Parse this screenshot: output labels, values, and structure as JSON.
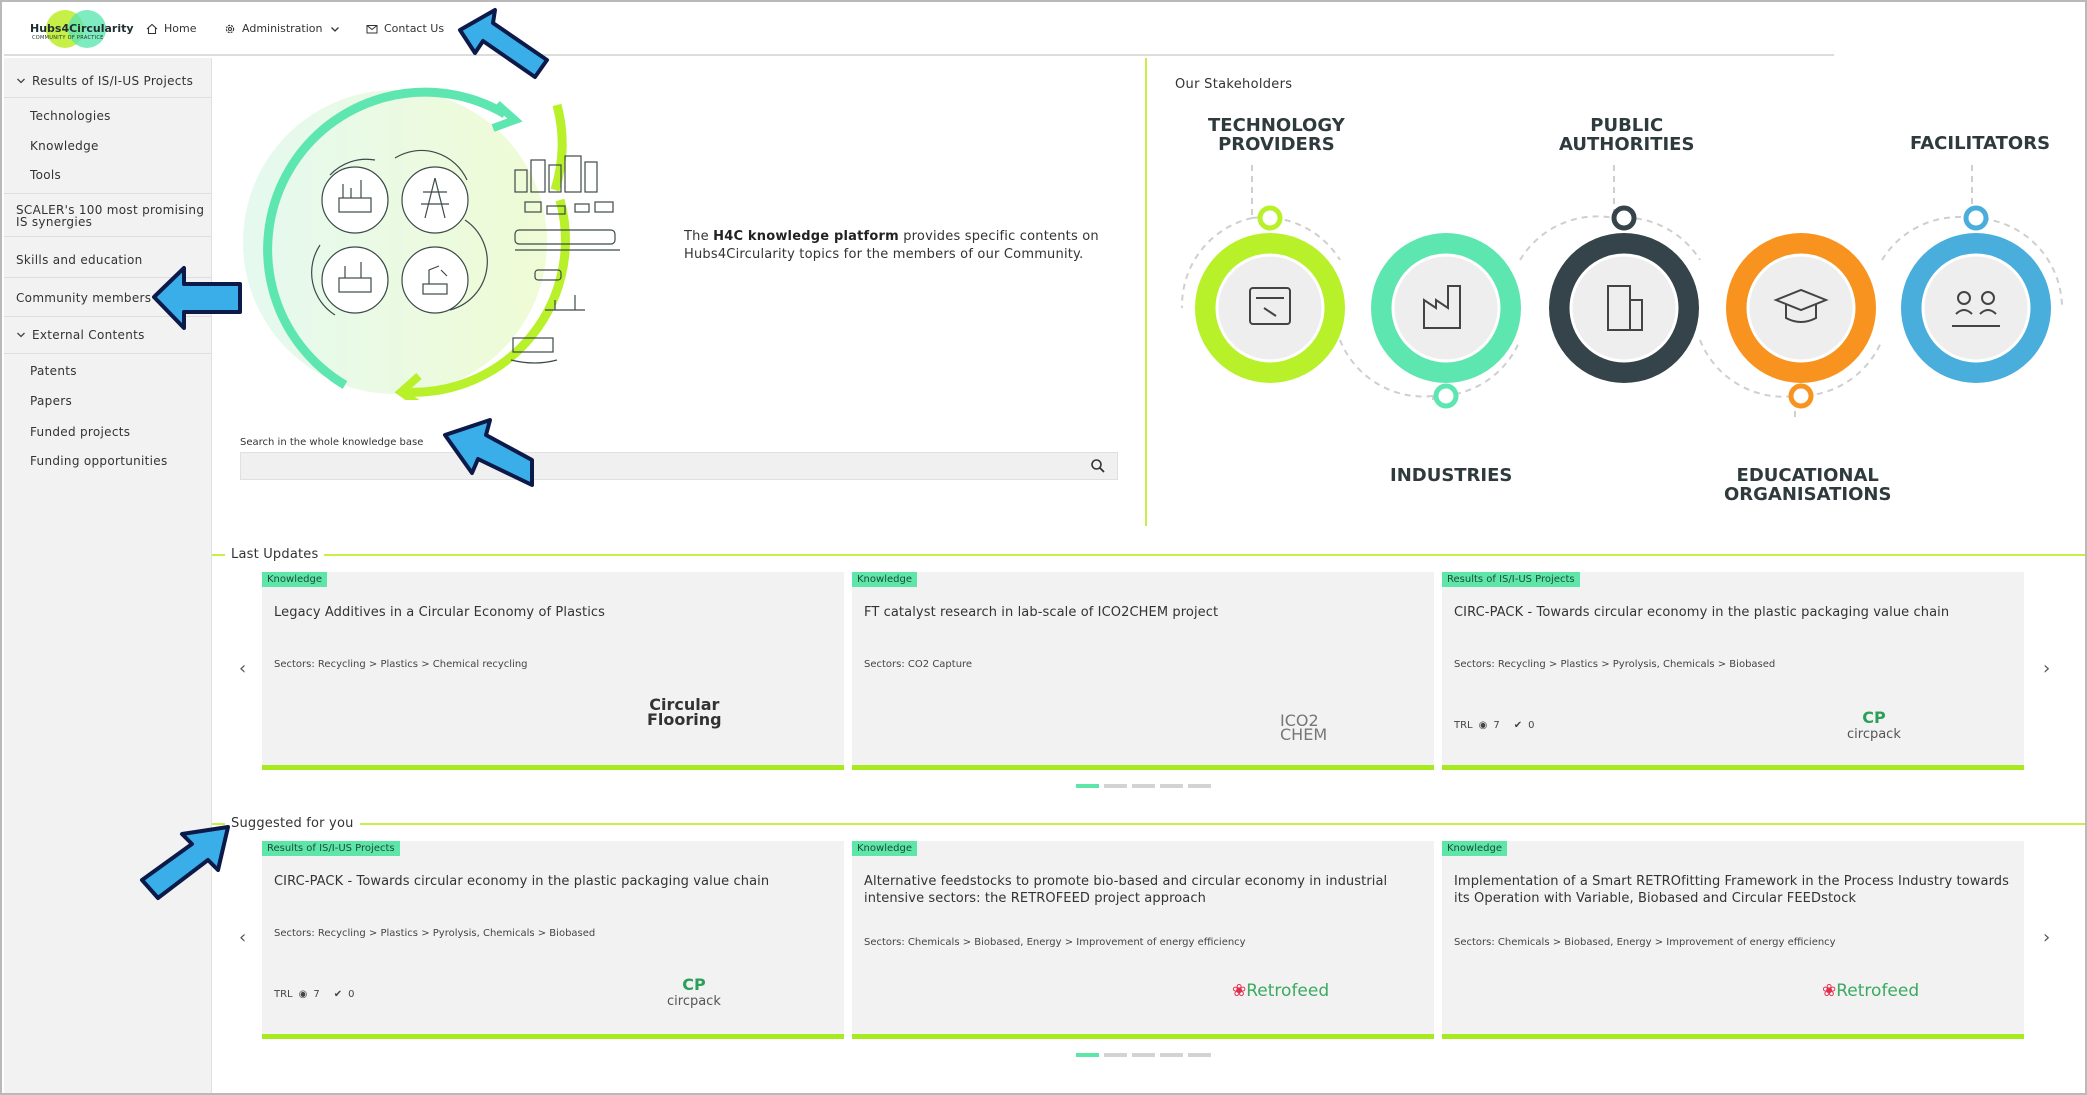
{
  "brand": {
    "name": "Hubs4Circularity",
    "tagline": "COMMUNITY OF PRACTICE"
  },
  "nav": {
    "home": "Home",
    "admin": "Administration",
    "contact": "Contact Us"
  },
  "sidebar": {
    "results": "Results of IS/I-US Projects",
    "technologies": "Technologies",
    "knowledge": "Knowledge",
    "tools": "Tools",
    "scaler_line1": "SCALER's 100 most promising",
    "scaler_line2": "IS synergies",
    "skills": "Skills and education",
    "community": "Community members",
    "external": "External Contents",
    "patents": "Patents",
    "papers": "Papers",
    "funded": "Funded projects",
    "funding": "Funding opportunities"
  },
  "hero": {
    "text_pre": "The ",
    "text_bold": "H4C knowledge platform",
    "text_post": " provides specific contents on Hubs4Circularity topics for the members of our Community."
  },
  "search": {
    "label": "Search in the whole knowledge base",
    "placeholder": ""
  },
  "stakeholders": {
    "title": "Our Stakeholders",
    "tech_1": "TECHNOLOGY",
    "tech_2": "PROVIDERS",
    "industries": "INDUSTRIES",
    "public_1": "PUBLIC",
    "public_2": "AUTHORITIES",
    "edu_1": "EDUCATIONAL",
    "edu_2": "ORGANISATIONS",
    "facilitators": "FACILITATORS",
    "colors": {
      "tech": "#b8f02a",
      "industries": "#5ee6b0",
      "public": "#34444a",
      "edu": "#f7931e",
      "facilitators": "#4aaedc"
    }
  },
  "last_updates": {
    "title": "Last Updates",
    "cards": [
      {
        "badge": "Knowledge",
        "title": "Legacy Additives in a Circular Economy of Plastics",
        "sectors_label": "Sectors:",
        "sectors": "Recycling > Plastics > Chemical recycling",
        "logo_1": "Circular",
        "logo_2": "Flooring"
      },
      {
        "badge": "Knowledge",
        "title": "FT catalyst research in lab-scale of ICO2CHEM project",
        "sectors_label": "Sectors:",
        "sectors": "CO2 Capture",
        "logo_1": "ICO2",
        "logo_2": "CHEM"
      },
      {
        "badge": "Results of IS/I-US Projects",
        "title": "CIRC-PACK - Towards circular economy in the plastic packaging value chain",
        "sectors_label": "Sectors:",
        "sectors": "Recycling > Plastics > Pyrolysis, Chemicals > Biobased",
        "trl": "TRL",
        "trl_val": "7",
        "check_val": "0",
        "logo_1": "circpack"
      }
    ]
  },
  "suggested": {
    "title": "Suggested for you",
    "cards": [
      {
        "badge": "Results of IS/I-US Projects",
        "title": "CIRC-PACK - Towards circular economy in the plastic packaging value chain",
        "sectors_label": "Sectors:",
        "sectors": "Recycling > Plastics > Pyrolysis, Chemicals > Biobased",
        "trl": "TRL",
        "trl_val": "7",
        "check_val": "0",
        "logo_1": "circpack"
      },
      {
        "badge": "Knowledge",
        "title": "Alternative feedstocks to promote bio-based and circular economy in industrial intensive sectors: the RETROFEED project approach",
        "sectors_label": "Sectors:",
        "sectors": "Chemicals > Biobased, Energy > Improvement of energy efficiency",
        "logo_1": "Retrofeed"
      },
      {
        "badge": "Knowledge",
        "title": "Implementation of a Smart RETROfitting Framework in the Process Industry towards its Operation with Variable, Biobased and Circular FEEDstock",
        "sectors_label": "Sectors:",
        "sectors": "Chemicals > Biobased, Energy > Improvement of energy efficiency",
        "logo_1": "Retrofeed"
      }
    ]
  },
  "colors": {
    "accent_green": "#a6ea1f",
    "badge": "#5ee6a8",
    "callout_arrow": "#3aaee8"
  }
}
